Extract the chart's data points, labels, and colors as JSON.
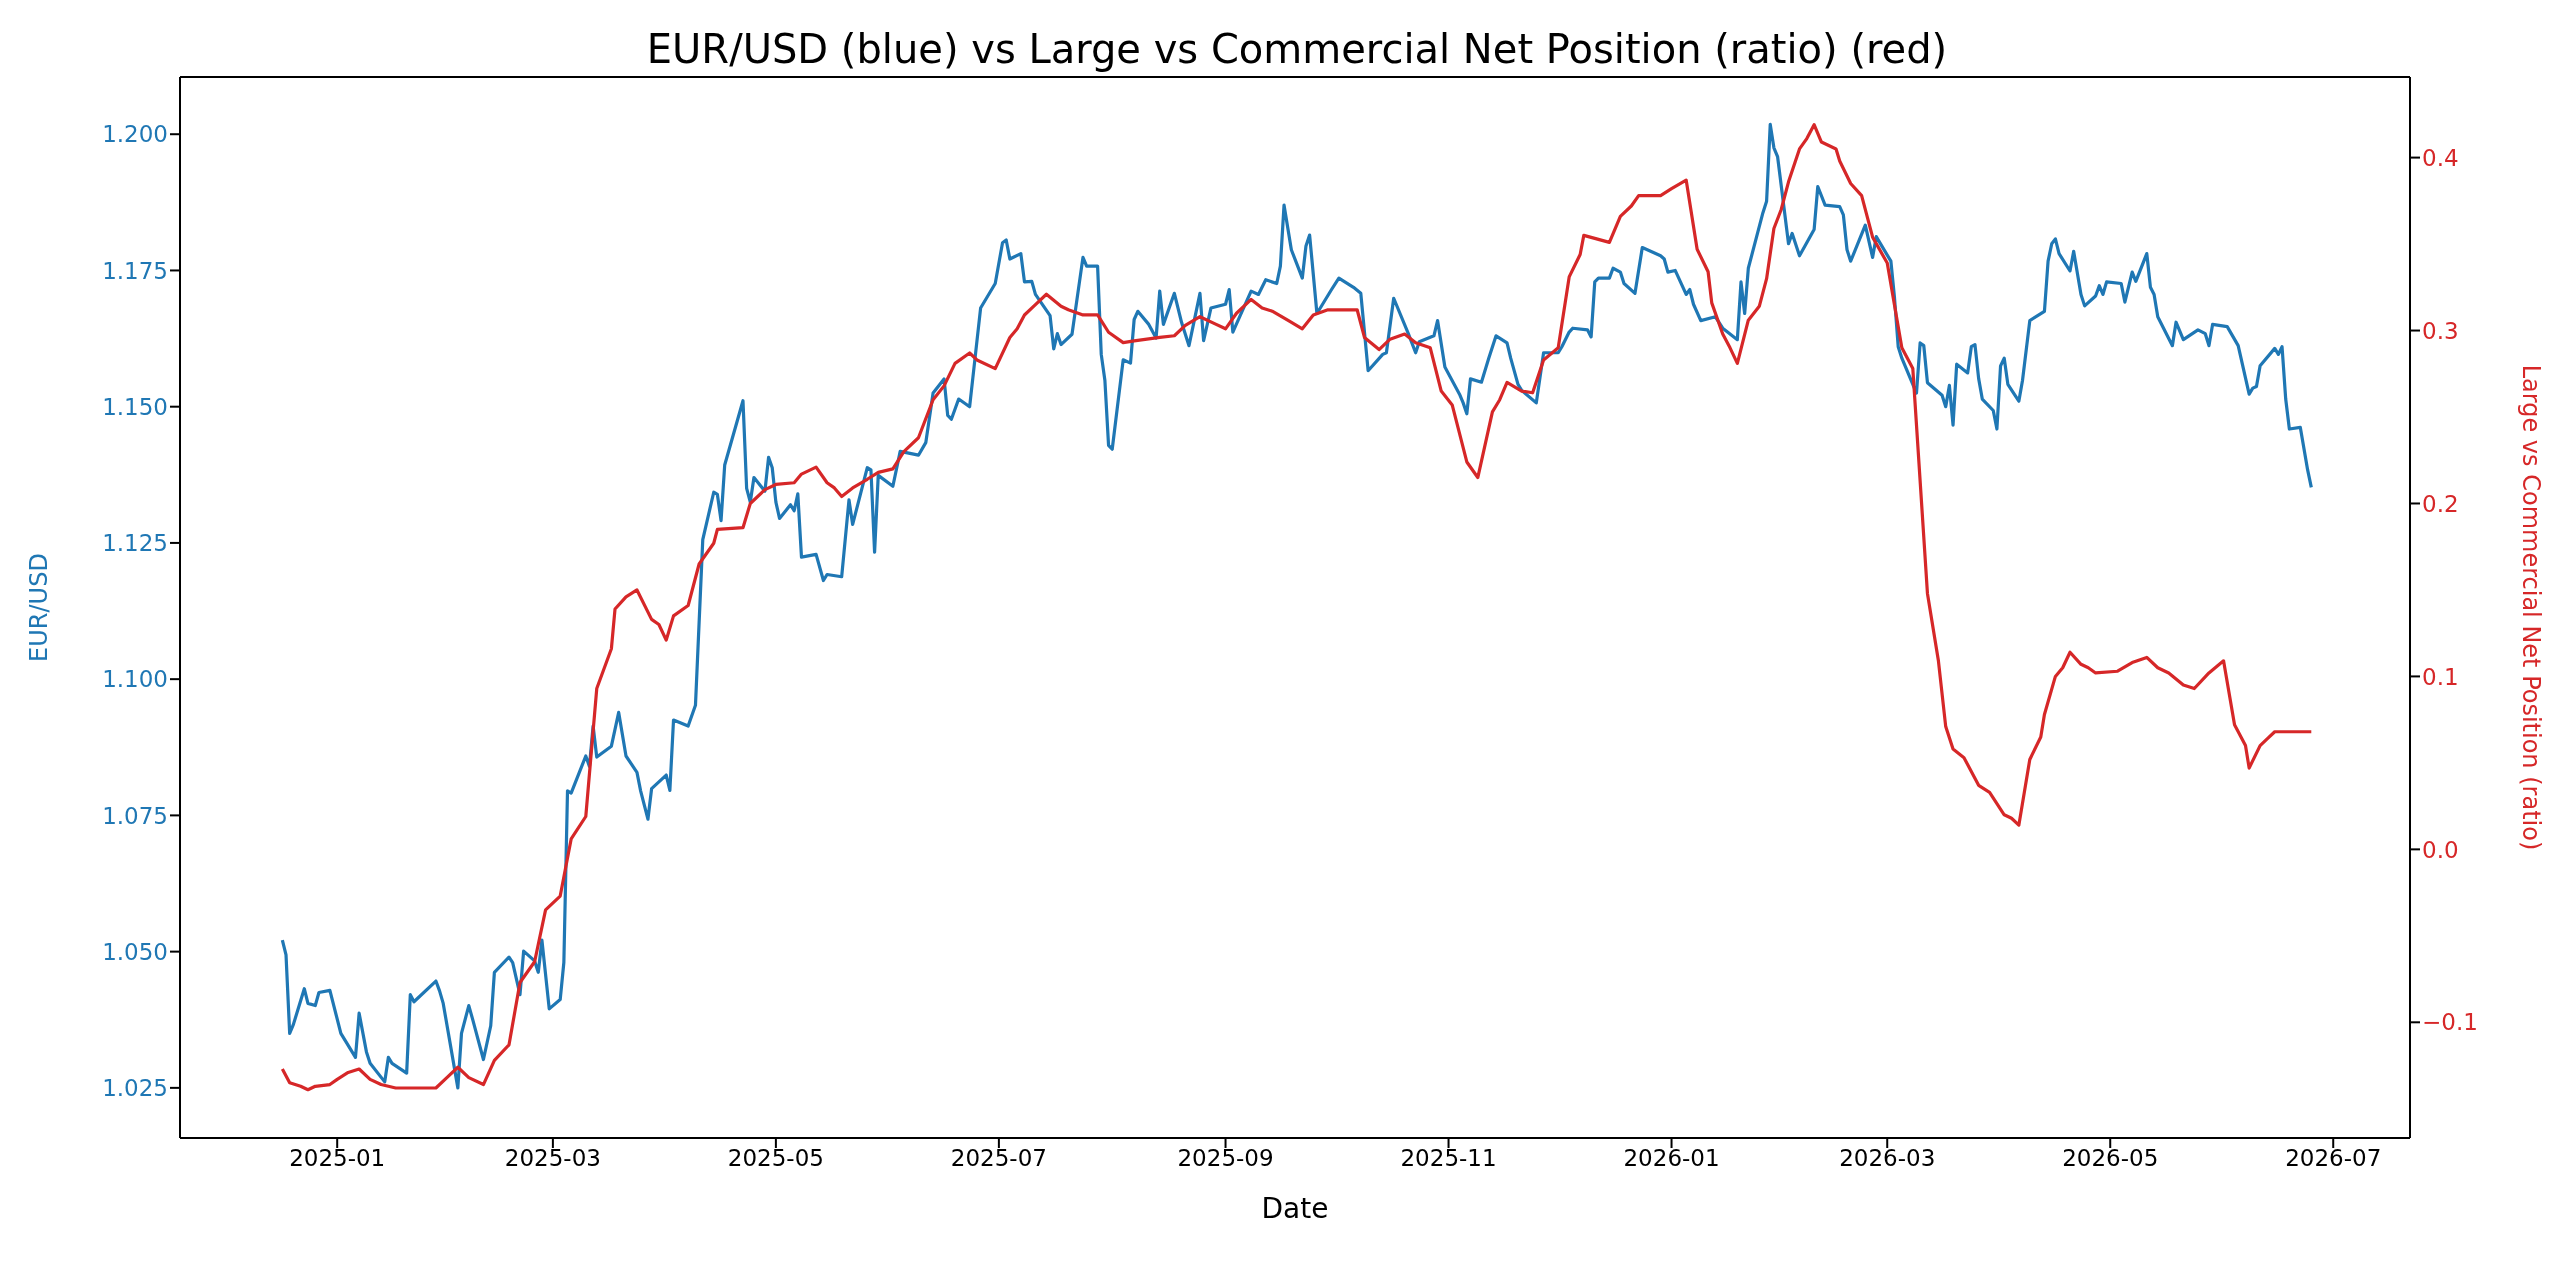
{
  "chart_data": {
    "type": "line",
    "title": "EUR/USD (blue) vs Large vs Commercial Net Position (ratio) (red)",
    "xlabel": "Date",
    "ylabel": "EUR/USD",
    "y2label": "Large vs Commercial Net Position (ratio)",
    "xlim": [
      "2024-11-19",
      "2026-07-22"
    ],
    "xticks": [
      "2025-01",
      "2025-03",
      "2025-05",
      "2025-07",
      "2025-09",
      "2025-11",
      "2026-01",
      "2026-03",
      "2026-05",
      "2026-07"
    ],
    "ylim": [
      1.0158,
      1.2105
    ],
    "yticks": [
      1.025,
      {
        "value": 1.05,
        "label": "1.050"
      },
      1.075,
      {
        "value": 1.1,
        "label": "1.100"
      },
      1.125,
      {
        "value": 1.15,
        "label": "1.150"
      },
      1.175,
      {
        "value": 1.2,
        "label": "1.200"
      }
    ],
    "y2lim": [
      -0.1669,
      0.4466
    ],
    "y2ticks": [
      {
        "value": -0.1,
        "label": "−0.1"
      },
      {
        "value": 0,
        "label": "0.0"
      },
      0.1,
      0.2,
      0.3,
      0.4
    ],
    "series": [
      {
        "color": "#1f77b4",
        "axis": "y",
        "x": [
          "2024-12-17",
          "2024-12-18",
          "2024-12-19",
          "2024-12-20",
          "2024-12-23",
          "2024-12-24",
          "2024-12-26",
          "2024-12-27",
          "2024-12-30",
          "2025-01-02",
          "2025-01-06",
          "2025-01-07",
          "2025-01-09",
          "2025-01-10",
          "2025-01-14",
          "2025-01-15",
          "2025-01-16",
          "2025-01-20",
          "2025-01-21",
          "2025-01-22",
          "2025-01-28",
          "2025-01-29",
          "2025-01-30",
          "2025-02-03",
          "2025-02-04",
          "2025-02-06",
          "2025-02-07",
          "2025-02-10",
          "2025-02-12",
          "2025-02-13",
          "2025-02-17",
          "2025-02-18",
          "2025-02-20",
          "2025-02-21",
          "2025-02-24",
          "2025-02-25",
          "2025-02-26",
          "2025-02-28",
          "2025-03-03",
          "2025-03-04",
          "2025-03-05",
          "2025-03-06",
          "2025-03-10",
          "2025-03-11",
          "2025-03-12",
          "2025-03-13",
          "2025-03-17",
          "2025-03-19",
          "2025-03-21",
          "2025-03-24",
          "2025-03-25",
          "2025-03-27",
          "2025-03-28",
          "2025-04-01",
          "2025-04-02",
          "2025-04-03",
          "2025-04-07",
          "2025-04-09",
          "2025-04-11",
          "2025-04-14",
          "2025-04-15",
          "2025-04-16",
          "2025-04-17",
          "2025-04-22",
          "2025-04-23",
          "2025-04-24",
          "2025-04-25",
          "2025-04-28",
          "2025-04-29",
          "2025-04-30",
          "2025-05-01",
          "2025-05-02",
          "2025-05-05",
          "2025-05-06",
          "2025-05-07",
          "2025-05-08",
          "2025-05-12",
          "2025-05-14",
          "2025-05-15",
          "2025-05-19",
          "2025-05-21",
          "2025-05-22",
          "2025-05-26",
          "2025-05-27",
          "2025-05-28",
          "2025-05-29",
          "2025-06-02",
          "2025-06-04",
          "2025-06-09",
          "2025-06-11",
          "2025-06-13",
          "2025-06-16",
          "2025-06-17",
          "2025-06-18",
          "2025-06-20",
          "2025-06-23",
          "2025-06-26",
          "2025-06-30",
          "2025-07-02",
          "2025-07-03",
          "2025-07-04",
          "2025-07-07",
          "2025-07-08",
          "2025-07-10",
          "2025-07-11",
          "2025-07-15",
          "2025-07-16",
          "2025-07-17",
          "2025-07-18",
          "2025-07-21",
          "2025-07-24",
          "2025-07-25",
          "2025-07-28",
          "2025-07-29",
          "2025-07-30",
          "2025-07-31",
          "2025-08-01",
          "2025-08-04",
          "2025-08-06",
          "2025-08-07",
          "2025-08-08",
          "2025-08-11",
          "2025-08-13",
          "2025-08-14",
          "2025-08-15",
          "2025-08-18",
          "2025-08-20",
          "2025-08-22",
          "2025-08-25",
          "2025-08-26",
          "2025-08-28",
          "2025-09-01",
          "2025-09-02",
          "2025-09-03",
          "2025-09-05",
          "2025-09-08",
          "2025-09-10",
          "2025-09-12",
          "2025-09-15",
          "2025-09-16",
          "2025-09-17",
          "2025-09-19",
          "2025-09-22",
          "2025-09-23",
          "2025-09-24",
          "2025-09-26",
          "2025-09-30",
          "2025-10-02",
          "2025-10-06",
          "2025-10-08",
          "2025-10-10",
          "2025-10-14",
          "2025-10-15",
          "2025-10-17",
          "2025-10-21",
          "2025-10-23",
          "2025-10-24",
          "2025-10-28",
          "2025-10-29",
          "2025-10-31",
          "2025-11-04",
          "2025-11-05",
          "2025-11-06",
          "2025-11-07",
          "2025-11-10",
          "2025-11-12",
          "2025-11-14",
          "2025-11-17",
          "2025-11-18",
          "2025-11-20",
          "2025-11-21",
          "2025-11-25",
          "2025-11-27",
          "2025-12-01",
          "2025-12-02",
          "2025-12-04",
          "2025-12-05",
          "2025-12-09",
          "2025-12-10",
          "2025-12-11",
          "2025-12-12",
          "2025-12-15",
          "2025-12-16",
          "2025-12-18",
          "2025-12-19",
          "2025-12-22",
          "2025-12-24",
          "2025-12-29",
          "2025-12-30",
          "2025-12-31",
          "2026-01-02",
          "2026-01-05",
          "2026-01-06",
          "2026-01-07",
          "2026-01-09",
          "2026-01-13",
          "2026-01-15",
          "2026-01-19",
          "2026-01-20",
          "2026-01-21",
          "2026-01-22",
          "2026-01-26",
          "2026-01-27",
          "2026-01-28",
          "2026-01-29",
          "2026-01-30",
          "2026-02-02",
          "2026-02-03",
          "2026-02-05",
          "2026-02-09",
          "2026-02-10",
          "2026-02-12",
          "2026-02-16",
          "2026-02-17",
          "2026-02-18",
          "2026-02-19",
          "2026-02-23",
          "2026-02-25",
          "2026-02-26",
          "2026-03-02",
          "2026-03-03",
          "2026-03-04",
          "2026-03-05",
          "2026-03-09",
          "2026-03-10",
          "2026-03-11",
          "2026-03-12",
          "2026-03-16",
          "2026-03-17",
          "2026-03-18",
          "2026-03-19",
          "2026-03-20",
          "2026-03-23",
          "2026-03-24",
          "2026-03-25",
          "2026-03-26",
          "2026-03-27",
          "2026-03-30",
          "2026-03-31",
          "2026-04-01",
          "2026-04-02",
          "2026-04-03",
          "2026-04-06",
          "2026-04-07",
          "2026-04-09",
          "2026-04-13",
          "2026-04-14",
          "2026-04-15",
          "2026-04-16",
          "2026-04-17",
          "2026-04-20",
          "2026-04-21",
          "2026-04-23",
          "2026-04-24",
          "2026-04-27",
          "2026-04-28",
          "2026-04-29",
          "2026-04-30",
          "2026-05-04",
          "2026-05-05",
          "2026-05-07",
          "2026-05-08",
          "2026-05-11",
          "2026-05-12",
          "2026-05-13",
          "2026-05-14",
          "2026-05-18",
          "2026-05-19",
          "2026-05-21",
          "2026-05-25",
          "2026-05-27",
          "2026-05-28",
          "2026-05-29",
          "2026-06-02",
          "2026-06-05",
          "2026-06-08",
          "2026-06-09",
          "2026-06-10",
          "2026-06-11",
          "2026-06-15",
          "2026-06-16",
          "2026-06-17",
          "2026-06-18",
          "2026-06-19",
          "2026-06-22",
          "2026-06-24",
          "2026-06-25"
        ],
        "values": [
          1.0521,
          1.0494,
          1.035,
          1.0366,
          1.0432,
          1.0405,
          1.0401,
          1.0425,
          1.0429,
          1.035,
          1.0306,
          1.0387,
          1.0316,
          1.0295,
          1.0261,
          1.0306,
          1.0295,
          1.0277,
          1.0421,
          1.0408,
          1.0446,
          1.0428,
          1.0405,
          1.025,
          1.035,
          1.0401,
          1.0377,
          1.0302,
          1.0364,
          1.0462,
          1.049,
          1.048,
          1.0421,
          1.0501,
          1.0483,
          1.0462,
          1.0521,
          1.0395,
          1.0412,
          1.048,
          1.0795,
          1.0791,
          1.0859,
          1.084,
          1.0914,
          1.0857,
          1.0877,
          1.0939,
          1.0859,
          1.0829,
          1.0795,
          1.0743,
          1.0799,
          1.0824,
          1.0796,
          1.0925,
          1.0914,
          1.0952,
          1.1256,
          1.1343,
          1.1339,
          1.1291,
          1.1393,
          1.1511,
          1.135,
          1.1325,
          1.137,
          1.1345,
          1.1407,
          1.1388,
          1.1325,
          1.1295,
          1.132,
          1.1309,
          1.134,
          1.1224,
          1.1229,
          1.1181,
          1.1192,
          1.1188,
          1.1329,
          1.1284,
          1.1388,
          1.1384,
          1.1233,
          1.1374,
          1.1354,
          1.1418,
          1.1411,
          1.1434,
          1.1525,
          1.1551,
          1.1484,
          1.1477,
          1.1514,
          1.15,
          1.1681,
          1.1726,
          1.1801,
          1.1806,
          1.1771,
          1.1781,
          1.1729,
          1.173,
          1.1706,
          1.1667,
          1.1606,
          1.1634,
          1.1614,
          1.1633,
          1.1774,
          1.1758,
          1.1758,
          1.1596,
          1.1548,
          1.1429,
          1.1422,
          1.1586,
          1.158,
          1.166,
          1.1675,
          1.1651,
          1.1626,
          1.1712,
          1.1651,
          1.1708,
          1.1654,
          1.1612,
          1.1708,
          1.1621,
          1.1681,
          1.1688,
          1.1715,
          1.1637,
          1.1667,
          1.1712,
          1.1706,
          1.1733,
          1.1726,
          1.1758,
          1.187,
          1.1788,
          1.1736,
          1.1795,
          1.1815,
          1.1671,
          1.1715,
          1.1736,
          1.1719,
          1.1708,
          1.1566,
          1.1596,
          1.1599,
          1.1699,
          1.1634,
          1.1599,
          1.1619,
          1.163,
          1.1658,
          1.1573,
          1.1523,
          1.1507,
          1.1487,
          1.1551,
          1.1545,
          1.1589,
          1.163,
          1.1617,
          1.1589,
          1.1541,
          1.153,
          1.1507,
          1.1599,
          1.1599,
          1.161,
          1.1637,
          1.1644,
          1.1641,
          1.1628,
          1.1729,
          1.1736,
          1.1736,
          1.1754,
          1.1747,
          1.1726,
          1.1708,
          1.1792,
          1.1777,
          1.1771,
          1.1747,
          1.175,
          1.1706,
          1.1715,
          1.1688,
          1.1658,
          1.1665,
          1.1644,
          1.1623,
          1.1729,
          1.1671,
          1.1754,
          1.1856,
          1.1877,
          1.2018,
          1.1975,
          1.1959,
          1.1799,
          1.1818,
          1.1777,
          1.1825,
          1.1904,
          1.187,
          1.1867,
          1.1852,
          1.1788,
          1.1767,
          1.1833,
          1.1774,
          1.1812,
          1.1767,
          1.1699,
          1.161,
          1.1589,
          1.1525,
          1.1617,
          1.1612,
          1.1544,
          1.1521,
          1.15,
          1.1539,
          1.1466,
          1.1578,
          1.1562,
          1.161,
          1.1614,
          1.1552,
          1.1514,
          1.1493,
          1.1459,
          1.1575,
          1.1589,
          1.1541,
          1.151,
          1.1548,
          1.1658,
          1.1675,
          1.1767,
          1.1799,
          1.1808,
          1.1781,
          1.1749,
          1.1785,
          1.1706,
          1.1685,
          1.1703,
          1.1722,
          1.1706,
          1.1729,
          1.1726,
          1.1692,
          1.1747,
          1.173,
          1.1781,
          1.1719,
          1.1706,
          1.1665,
          1.1612,
          1.1655,
          1.1623,
          1.1641,
          1.1634,
          1.1612,
          1.1651,
          1.1647,
          1.1612,
          1.1523,
          1.1534,
          1.1537,
          1.1575,
          1.1607,
          1.1596,
          1.161,
          1.1514,
          1.1459,
          1.1462,
          1.1384,
          1.1352
        ]
      },
      {
        "color": "#d62728",
        "axis": "y2",
        "x": [
          "2024-12-17",
          "2024-12-19",
          "2024-12-22",
          "2024-12-24",
          "2024-12-26",
          "2024-12-30",
          "2025-01-01",
          "2025-01-04",
          "2025-01-07",
          "2025-01-10",
          "2025-01-13",
          "2025-01-17",
          "2025-01-21",
          "2025-01-28",
          "2025-01-31",
          "2025-02-03",
          "2025-02-06",
          "2025-02-10",
          "2025-02-13",
          "2025-02-17",
          "2025-02-20",
          "2025-02-24",
          "2025-02-27",
          "2025-03-03",
          "2025-03-06",
          "2025-03-10",
          "2025-03-13",
          "2025-03-17",
          "2025-03-18",
          "2025-03-21",
          "2025-03-24",
          "2025-03-28",
          "2025-03-30",
          "2025-04-01",
          "2025-04-03",
          "2025-04-07",
          "2025-04-10",
          "2025-04-14",
          "2025-04-15",
          "2025-04-22",
          "2025-04-24",
          "2025-04-28",
          "2025-05-01",
          "2025-05-06",
          "2025-05-08",
          "2025-05-12",
          "2025-05-15",
          "2025-05-17",
          "2025-05-19",
          "2025-05-22",
          "2025-05-26",
          "2025-05-29",
          "2025-06-02",
          "2025-06-05",
          "2025-06-09",
          "2025-06-13",
          "2025-06-16",
          "2025-06-19",
          "2025-06-23",
          "2025-06-25",
          "2025-06-30",
          "2025-07-04",
          "2025-07-06",
          "2025-07-08",
          "2025-07-11",
          "2025-07-14",
          "2025-07-18",
          "2025-07-20",
          "2025-07-24",
          "2025-07-28",
          "2025-07-31",
          "2025-08-04",
          "2025-08-07",
          "2025-08-14",
          "2025-08-18",
          "2025-08-21",
          "2025-08-25",
          "2025-08-29",
          "2025-09-01",
          "2025-09-04",
          "2025-09-08",
          "2025-09-11",
          "2025-09-14",
          "2025-09-18",
          "2025-09-22",
          "2025-09-25",
          "2025-09-29",
          "2025-10-07",
          "2025-10-09",
          "2025-10-13",
          "2025-10-16",
          "2025-10-20",
          "2025-10-23",
          "2025-10-27",
          "2025-10-30",
          "2025-11-02",
          "2025-11-06",
          "2025-11-09",
          "2025-11-13",
          "2025-11-15",
          "2025-11-17",
          "2025-11-21",
          "2025-11-24",
          "2025-11-27",
          "2025-12-01",
          "2025-12-04",
          "2025-12-07",
          "2025-12-08",
          "2025-12-15",
          "2025-12-18",
          "2025-12-21",
          "2025-12-23",
          "2025-12-29",
          "2026-01-01",
          "2026-01-05",
          "2026-01-08",
          "2026-01-11",
          "2026-01-12",
          "2026-01-15",
          "2026-01-17",
          "2026-01-19",
          "2026-01-22",
          "2026-01-25",
          "2026-01-27",
          "2026-01-29",
          "2026-01-31",
          "2026-02-02",
          "2026-02-05",
          "2026-02-07",
          "2026-02-09",
          "2026-02-11",
          "2026-02-15",
          "2026-02-16",
          "2026-02-19",
          "2026-02-22",
          "2026-02-25",
          "2026-03-01",
          "2026-03-05",
          "2026-03-08",
          "2026-03-12",
          "2026-03-15",
          "2026-03-17",
          "2026-03-19",
          "2026-03-22",
          "2026-03-26",
          "2026-03-29",
          "2026-04-02",
          "2026-04-04",
          "2026-04-06",
          "2026-04-09",
          "2026-04-12",
          "2026-04-13",
          "2026-04-16",
          "2026-04-18",
          "2026-04-20",
          "2026-04-23",
          "2026-04-25",
          "2026-04-27",
          "2026-05-03",
          "2026-05-07",
          "2026-05-11",
          "2026-05-14",
          "2026-05-17",
          "2026-05-21",
          "2026-05-24",
          "2026-05-28",
          "2026-06-01",
          "2026-06-04",
          "2026-06-07",
          "2026-06-08",
          "2026-06-11",
          "2026-06-13",
          "2026-06-15",
          "2026-06-25"
        ],
        "values": [
          -0.127,
          -0.135,
          -0.137,
          -0.139,
          -0.137,
          -0.136,
          -0.133,
          -0.129,
          -0.127,
          -0.133,
          -0.136,
          -0.138,
          -0.138,
          -0.138,
          -0.132,
          -0.126,
          -0.132,
          -0.136,
          -0.122,
          -0.113,
          -0.077,
          -0.065,
          -0.035,
          -0.027,
          0.006,
          0.019,
          0.093,
          0.116,
          0.139,
          0.146,
          0.15,
          0.133,
          0.13,
          0.121,
          0.135,
          0.141,
          0.165,
          0.177,
          0.185,
          0.186,
          0.2,
          0.208,
          0.211,
          0.212,
          0.217,
          0.221,
          0.212,
          0.209,
          0.204,
          0.209,
          0.214,
          0.218,
          0.22,
          0.23,
          0.238,
          0.26,
          0.268,
          0.281,
          0.287,
          0.283,
          0.278,
          0.296,
          0.301,
          0.309,
          0.315,
          0.321,
          0.314,
          0.312,
          0.309,
          0.309,
          0.299,
          0.293,
          0.294,
          0.296,
          0.297,
          0.303,
          0.308,
          0.304,
          0.301,
          0.31,
          0.318,
          0.313,
          0.311,
          0.306,
          0.301,
          0.309,
          0.312,
          0.312,
          0.296,
          0.289,
          0.295,
          0.298,
          0.293,
          0.29,
          0.265,
          0.257,
          0.224,
          0.215,
          0.253,
          0.26,
          0.27,
          0.265,
          0.264,
          0.283,
          0.29,
          0.331,
          0.344,
          0.355,
          0.351,
          0.366,
          0.372,
          0.378,
          0.378,
          0.382,
          0.387,
          0.347,
          0.334,
          0.316,
          0.298,
          0.29,
          0.281,
          0.306,
          0.314,
          0.33,
          0.359,
          0.37,
          0.386,
          0.405,
          0.411,
          0.419,
          0.409,
          0.405,
          0.398,
          0.385,
          0.378,
          0.354,
          0.339,
          0.29,
          0.278,
          0.148,
          0.109,
          0.071,
          0.058,
          0.053,
          0.037,
          0.033,
          0.02,
          0.018,
          0.014,
          0.052,
          0.065,
          0.078,
          0.1,
          0.105,
          0.114,
          0.107,
          0.105,
          0.102,
          0.103,
          0.108,
          0.111,
          0.105,
          0.102,
          0.095,
          0.093,
          0.102,
          0.109,
          0.072,
          0.06,
          0.047,
          0.06,
          0.064,
          0.068,
          0.068
        ]
      }
    ]
  }
}
